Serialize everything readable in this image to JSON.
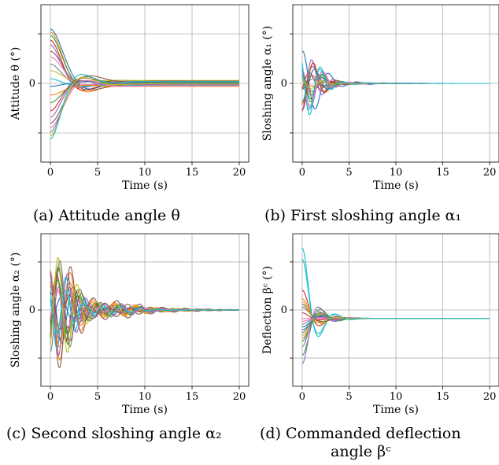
{
  "figure": {
    "captions": [
      "(a) Attitude angle θ",
      "(b) First sloshing angle α₁",
      "(c) Second sloshing angle α₂",
      "(d) Commanded deflection"
    ],
    "caption_d_line2": "angle βᶜ"
  },
  "chart_data": [
    {
      "type": "line",
      "title": "",
      "xlabel": "Time (s)",
      "ylabel": "Attitude θ (°)",
      "xlim": [
        -1,
        21
      ],
      "x_ticks": [
        0,
        5,
        10,
        15,
        20
      ],
      "y_tick_labels": [
        "0"
      ],
      "grid": true,
      "n_series": 20,
      "series_color_cycle": [
        "#1f77b4",
        "#ff7f0e",
        "#2ca02c",
        "#d62728",
        "#9467bd",
        "#8c564b",
        "#e377c2",
        "#7f7f7f",
        "#bcbd22",
        "#17becf"
      ],
      "y0": [
        0.93,
        0.88,
        0.82,
        0.74,
        0.66,
        0.55,
        0.45,
        0.33,
        0.22,
        0.08,
        -0.05,
        -0.2,
        -0.33,
        -0.47,
        -0.58,
        -0.68,
        -0.76,
        -0.83,
        -0.9,
        -0.95
      ],
      "steady_state": [
        0.02,
        -0.03,
        0.04,
        -0.02,
        0.01,
        -0.04,
        0.03,
        -0.01,
        0.05,
        -0.03,
        0.02,
        -0.05,
        0.0,
        0.03,
        -0.02,
        0.04,
        -0.04,
        0.01,
        -0.01,
        0.03
      ],
      "zeta": 0.55,
      "omega": 0.9
    },
    {
      "type": "line",
      "title": "",
      "xlabel": "Time (s)",
      "ylabel": "Sloshing angle α₁ (°)",
      "xlim": [
        -1,
        21
      ],
      "x_ticks": [
        0,
        5,
        10,
        15,
        20
      ],
      "y_tick_labels": [
        "0"
      ],
      "grid": true,
      "n_series": 20,
      "series_color_cycle": [
        "#1f77b4",
        "#ff7f0e",
        "#2ca02c",
        "#d62728",
        "#9467bd",
        "#8c564b",
        "#e377c2",
        "#7f7f7f",
        "#bcbd22",
        "#17becf"
      ],
      "y0": [
        0.55,
        -0.4,
        0.3,
        -0.2,
        -0.5,
        0.15,
        0.45,
        -0.1,
        0.2,
        0.6,
        -0.3,
        0.05,
        0.35,
        -0.45,
        0.25,
        -0.15,
        0.4,
        -0.35,
        0.1,
        0.5
      ],
      "steady_state": [
        0,
        0,
        0,
        0,
        0,
        0,
        0,
        0,
        0,
        0,
        0,
        0,
        0,
        0,
        0,
        0,
        0,
        0,
        0,
        0
      ],
      "zeta": 0.22,
      "omega": 2.2
    },
    {
      "type": "line",
      "title": "",
      "xlabel": "Time (s)",
      "ylabel": "Sloshing angle α₂ (°)",
      "xlim": [
        -1,
        21
      ],
      "x_ticks": [
        0,
        5,
        10,
        15,
        20
      ],
      "y_tick_labels": [
        "0"
      ],
      "grid": true,
      "n_series": 20,
      "series_color_cycle": [
        "#1f77b4",
        "#ff7f0e",
        "#2ca02c",
        "#d62728",
        "#9467bd",
        "#8c564b",
        "#e377c2",
        "#7f7f7f",
        "#bcbd22",
        "#17becf"
      ],
      "y0": [
        0.5,
        0.75,
        -0.65,
        -0.55,
        -0.35,
        0.85,
        0.4,
        -0.75,
        0.25,
        0.6,
        -0.2,
        0.55,
        -0.45,
        0.3,
        0.7,
        -0.6,
        -0.3,
        0.45,
        -0.8,
        0.35
      ],
      "steady_state": [
        0,
        0,
        0,
        0,
        0,
        0,
        0,
        0,
        0,
        0,
        0,
        0,
        0,
        0,
        0,
        0,
        0,
        0,
        0,
        0
      ],
      "zeta": 0.09,
      "omega": 2.6
    },
    {
      "type": "line",
      "title": "",
      "xlabel": "Time (s)",
      "ylabel": "Deflection βᶜ (°)",
      "xlim": [
        -1,
        21
      ],
      "x_ticks": [
        0,
        5,
        10,
        15,
        20
      ],
      "y_tick_labels": [
        "0"
      ],
      "grid": true,
      "n_series": 20,
      "series_color_cycle": [
        "#1f77b4",
        "#ff7f0e",
        "#2ca02c",
        "#d62728",
        "#9467bd",
        "#8c564b",
        "#e377c2",
        "#7f7f7f",
        "#bcbd22",
        "#17becf"
      ],
      "y0": [
        -0.3,
        -0.5,
        -0.8,
        0.35,
        -0.95,
        0.1,
        -0.15,
        -0.25,
        -0.45,
        1.1,
        -0.35,
        0.2,
        -0.55,
        -0.05,
        -0.65,
        0.05,
        -0.2,
        -0.4,
        0.15,
        0.9
      ],
      "steady_state": [
        -0.15,
        -0.15,
        -0.15,
        -0.15,
        -0.15,
        -0.15,
        -0.15,
        -0.15,
        -0.15,
        -0.15,
        -0.15,
        -0.15,
        -0.15,
        -0.15,
        -0.15,
        -0.15,
        -0.15,
        -0.15,
        -0.15,
        -0.15
      ],
      "zeta": 0.4,
      "omega": 1.6
    }
  ]
}
